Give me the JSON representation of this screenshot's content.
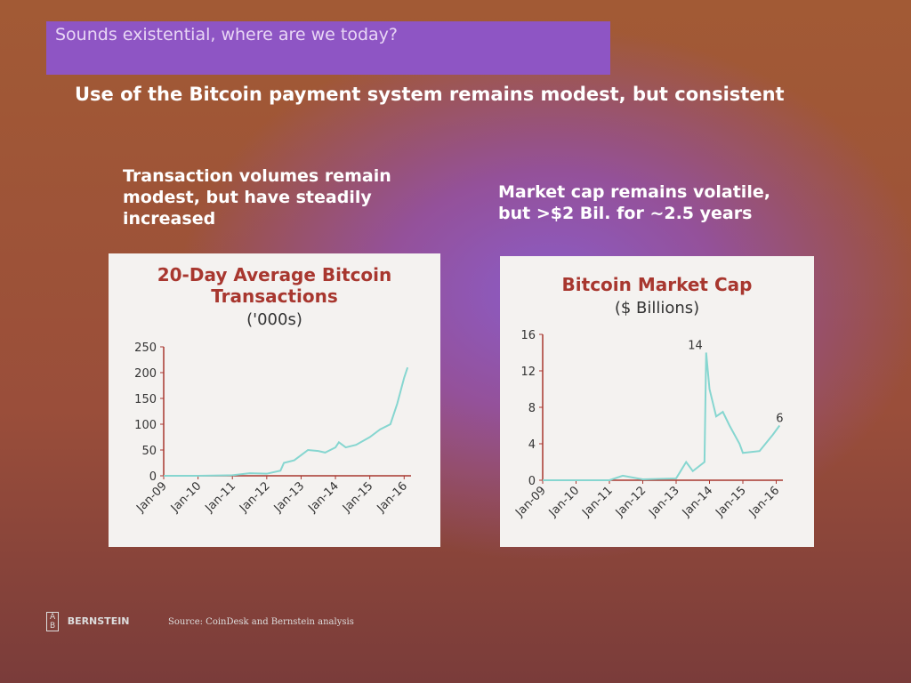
{
  "header": "Sounds existential, where are we today?",
  "headline": "Use of the Bitcoin payment system remains modest, but consistent",
  "captions": [
    "Transaction volumes remain modest, but have steadily increased",
    "Market cap remains volatile, but >$2 Bil. for ~2.5 years"
  ],
  "chart_data": [
    {
      "type": "line",
      "title": "20-Day Average Bitcoin Transactions",
      "subtitle": "('000s)",
      "x": [
        2009,
        2010,
        2011,
        2011.5,
        2012,
        2012.4,
        2012.5,
        2012.8,
        2013,
        2013.2,
        2013.5,
        2013.7,
        2014,
        2014.1,
        2014.3,
        2014.6,
        2015,
        2015.3,
        2015.6,
        2015.8,
        2016,
        2016.1
      ],
      "series": [
        {
          "name": "Transactions",
          "color": "#86d6d0",
          "values": [
            0,
            0,
            1,
            5,
            4,
            10,
            25,
            30,
            40,
            50,
            48,
            45,
            55,
            65,
            55,
            60,
            75,
            90,
            100,
            140,
            190,
            210
          ]
        }
      ],
      "xlim": [
        2009,
        2016.2
      ],
      "xticks": [
        {
          "value": 2009,
          "label": "Jan-09"
        },
        {
          "value": 2010,
          "label": "Jan-10"
        },
        {
          "value": 2011,
          "label": "Jan-11"
        },
        {
          "value": 2012,
          "label": "Jan-12"
        },
        {
          "value": 2013,
          "label": "Jan-13"
        },
        {
          "value": 2014,
          "label": "Jan-14"
        },
        {
          "value": 2015,
          "label": "Jan-15"
        },
        {
          "value": 2016,
          "label": "Jan-16"
        }
      ],
      "ylim": [
        0,
        250
      ],
      "yticks": [
        0,
        50,
        100,
        150,
        200,
        250
      ]
    },
    {
      "type": "line",
      "title": "Bitcoin Market Cap",
      "subtitle": "($ Billions)",
      "x": [
        2009,
        2010,
        2011,
        2011.4,
        2012,
        2013,
        2013.3,
        2013.5,
        2013.85,
        2013.9,
        2014,
        2014.2,
        2014.4,
        2014.6,
        2014.9,
        2015,
        2015.5,
        2015.9,
        2016.1
      ],
      "series": [
        {
          "name": "Market Cap",
          "color": "#86d6d0",
          "values": [
            0,
            0,
            0,
            0.5,
            0.1,
            0.2,
            2,
            1,
            2,
            14,
            10,
            7,
            7.5,
            6,
            4,
            3,
            3.2,
            5,
            6
          ]
        }
      ],
      "annotations": [
        {
          "label": "14",
          "x": 2013.9,
          "y": 14
        },
        {
          "label": "6",
          "x": 2016.1,
          "y": 6
        }
      ],
      "xlim": [
        2009,
        2016.2
      ],
      "xticks": [
        {
          "value": 2009,
          "label": "Jan-09"
        },
        {
          "value": 2010,
          "label": "Jan-10"
        },
        {
          "value": 2011,
          "label": "Jan-11"
        },
        {
          "value": 2012,
          "label": "Jan-12"
        },
        {
          "value": 2013,
          "label": "Jan-13"
        },
        {
          "value": 2014,
          "label": "Jan-14"
        },
        {
          "value": 2015,
          "label": "Jan-15"
        },
        {
          "value": 2016,
          "label": "Jan-16"
        }
      ],
      "ylim": [
        0,
        16
      ],
      "yticks": [
        0,
        4,
        8,
        12,
        16
      ]
    }
  ],
  "footer": {
    "logo_letters": [
      "A",
      "B"
    ],
    "logo": "BERNSTEIN",
    "source": "Source: CoinDesk and Bernstein analysis"
  }
}
